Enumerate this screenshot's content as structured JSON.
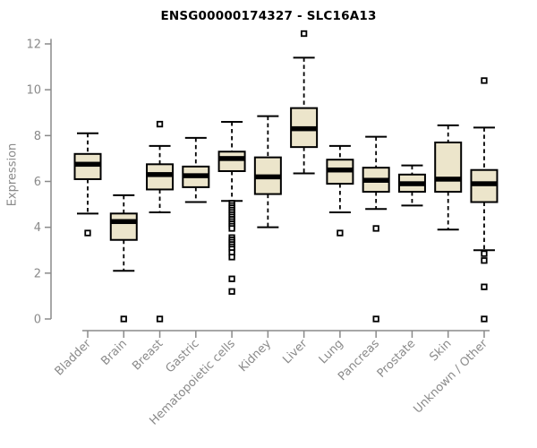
{
  "chart_data": {
    "type": "box",
    "title": "ENSG00000174327 - SLC16A13",
    "ylabel": "Expression",
    "xlabel": "",
    "ylim": [
      0,
      12.3
    ],
    "yticks": [
      0,
      2,
      4,
      6,
      8,
      10,
      12
    ],
    "grid": false,
    "legend": false,
    "categories": [
      "Bladder",
      "Brain",
      "Breast",
      "Gastric",
      "Hematopoietic cells",
      "Kidney",
      "Liver",
      "Lung",
      "Pancreas",
      "Prostate",
      "Skin",
      "Unknown / Other"
    ],
    "series": [
      {
        "category": "Bladder",
        "whisker_low": 4.6,
        "q1": 6.1,
        "median": 6.75,
        "q3": 7.2,
        "whisker_high": 8.1,
        "outliers": [
          3.75
        ]
      },
      {
        "category": "Brain",
        "whisker_low": 2.1,
        "q1": 3.45,
        "median": 4.25,
        "q3": 4.6,
        "whisker_high": 5.4,
        "outliers": [
          0
        ]
      },
      {
        "category": "Breast",
        "whisker_low": 4.65,
        "q1": 5.65,
        "median": 6.3,
        "q3": 6.75,
        "whisker_high": 7.55,
        "outliers": [
          8.5,
          0
        ]
      },
      {
        "category": "Gastric",
        "whisker_low": 5.1,
        "q1": 5.75,
        "median": 6.25,
        "q3": 6.65,
        "whisker_high": 7.9,
        "outliers": []
      },
      {
        "category": "Hematopoietic cells",
        "whisker_low": 5.15,
        "q1": 6.45,
        "median": 7.0,
        "q3": 7.3,
        "whisker_high": 8.6,
        "outliers": [
          5.05,
          4.95,
          4.85,
          4.75,
          4.65,
          4.55,
          4.45,
          4.35,
          4.25,
          4.15,
          4.05,
          3.95,
          3.55,
          3.45,
          3.35,
          3.25,
          3.15,
          3.05,
          2.9,
          2.7,
          1.75,
          1.2
        ]
      },
      {
        "category": "Kidney",
        "whisker_low": 4.0,
        "q1": 5.45,
        "median": 6.2,
        "q3": 7.05,
        "whisker_high": 8.85,
        "outliers": []
      },
      {
        "category": "Liver",
        "whisker_low": 6.35,
        "q1": 7.5,
        "median": 8.3,
        "q3": 9.2,
        "whisker_high": 11.4,
        "outliers": [
          12.45
        ]
      },
      {
        "category": "Lung",
        "whisker_low": 4.65,
        "q1": 5.9,
        "median": 6.5,
        "q3": 6.95,
        "whisker_high": 7.55,
        "outliers": [
          3.75
        ]
      },
      {
        "category": "Pancreas",
        "whisker_low": 4.8,
        "q1": 5.55,
        "median": 6.05,
        "q3": 6.6,
        "whisker_high": 7.95,
        "outliers": [
          3.95,
          0
        ]
      },
      {
        "category": "Prostate",
        "whisker_low": 4.95,
        "q1": 5.55,
        "median": 5.9,
        "q3": 6.3,
        "whisker_high": 6.7,
        "outliers": []
      },
      {
        "category": "Skin",
        "whisker_low": 3.9,
        "q1": 5.55,
        "median": 6.1,
        "q3": 7.7,
        "whisker_high": 8.45,
        "outliers": []
      },
      {
        "category": "Unknown / Other",
        "whisker_low": 3.0,
        "q1": 5.1,
        "median": 5.9,
        "q3": 6.5,
        "whisker_high": 8.35,
        "outliers": [
          10.4,
          2.85,
          2.55,
          1.4,
          0
        ]
      }
    ]
  },
  "colors": {
    "box_fill": "#ece5cb",
    "box_stroke": "#000000",
    "median": "#000000",
    "whisker": "#000000",
    "outlier_stroke": "#000000",
    "outlier_fill": "#ffffff",
    "axis": "#8a8a8a",
    "tick_label": "#8a8a8a",
    "title": "#000000",
    "background": "#ffffff"
  }
}
